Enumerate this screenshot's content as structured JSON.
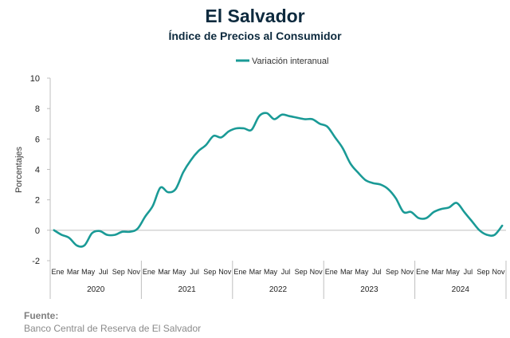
{
  "chart_data": {
    "type": "line",
    "title": "El Salvador",
    "subtitle": "Índice de Precios al Consumidor",
    "ylabel": "Porcentajes",
    "xlabel": "",
    "ylim": [
      -2,
      10
    ],
    "yticks": [
      "10",
      "8",
      "6",
      "4",
      "2",
      "0",
      "-2"
    ],
    "month_tick_labels": [
      "Ene",
      "Mar",
      "May",
      "Jul",
      "Sep",
      "Nov"
    ],
    "years": [
      "2020",
      "2021",
      "2022",
      "2023",
      "2024"
    ],
    "legend": {
      "position": "top-center"
    },
    "grid": false,
    "colors": {
      "line": "#1a9a96",
      "axis": "#bfbfbf",
      "title": "#0d2a3e"
    },
    "x": [
      "2020-01",
      "2020-02",
      "2020-03",
      "2020-04",
      "2020-05",
      "2020-06",
      "2020-07",
      "2020-08",
      "2020-09",
      "2020-10",
      "2020-11",
      "2020-12",
      "2021-01",
      "2021-02",
      "2021-03",
      "2021-04",
      "2021-05",
      "2021-06",
      "2021-07",
      "2021-08",
      "2021-09",
      "2021-10",
      "2021-11",
      "2021-12",
      "2022-01",
      "2022-02",
      "2022-03",
      "2022-04",
      "2022-05",
      "2022-06",
      "2022-07",
      "2022-08",
      "2022-09",
      "2022-10",
      "2022-11",
      "2022-12",
      "2023-01",
      "2023-02",
      "2023-03",
      "2023-04",
      "2023-05",
      "2023-06",
      "2023-07",
      "2023-08",
      "2023-09",
      "2023-10",
      "2023-11",
      "2023-12",
      "2024-01",
      "2024-02",
      "2024-03",
      "2024-04",
      "2024-05",
      "2024-06",
      "2024-07",
      "2024-08",
      "2024-09",
      "2024-10",
      "2024-11",
      "2024-12"
    ],
    "series": [
      {
        "name": "Variación interanual",
        "values": [
          0.0,
          -0.3,
          -0.5,
          -1.0,
          -1.0,
          -0.2,
          -0.05,
          -0.3,
          -0.3,
          -0.1,
          -0.1,
          0.1,
          0.9,
          1.6,
          2.8,
          2.5,
          2.7,
          3.8,
          4.6,
          5.2,
          5.6,
          6.2,
          6.1,
          6.5,
          6.7,
          6.7,
          6.6,
          7.5,
          7.7,
          7.3,
          7.6,
          7.5,
          7.4,
          7.3,
          7.3,
          7.0,
          6.8,
          6.1,
          5.4,
          4.4,
          3.8,
          3.3,
          3.1,
          3.0,
          2.7,
          2.1,
          1.2,
          1.2,
          0.8,
          0.8,
          1.2,
          1.4,
          1.5,
          1.8,
          1.2,
          0.6,
          0.0,
          -0.3,
          -0.3,
          0.3
        ]
      }
    ]
  },
  "source": {
    "heading": "Fuente:",
    "text": "Banco Central de Reserva de El Salvador"
  }
}
